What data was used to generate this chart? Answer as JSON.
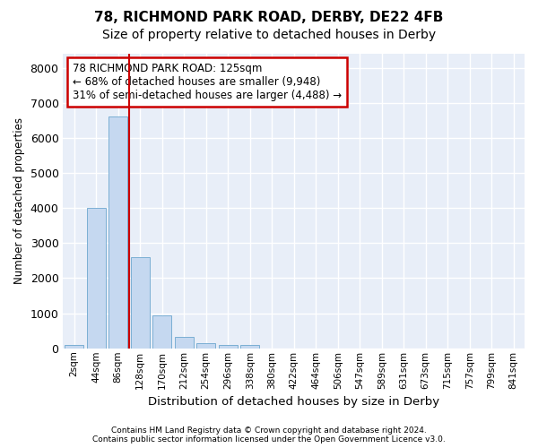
{
  "title1": "78, RICHMOND PARK ROAD, DERBY, DE22 4FB",
  "title2": "Size of property relative to detached houses in Derby",
  "xlabel": "Distribution of detached houses by size in Derby",
  "ylabel": "Number of detached properties",
  "bar_labels": [
    "2sqm",
    "44sqm",
    "86sqm",
    "128sqm",
    "170sqm",
    "212sqm",
    "254sqm",
    "296sqm",
    "338sqm",
    "380sqm",
    "422sqm",
    "464sqm",
    "506sqm",
    "547sqm",
    "589sqm",
    "631sqm",
    "673sqm",
    "715sqm",
    "757sqm",
    "799sqm",
    "841sqm"
  ],
  "bar_values": [
    100,
    4000,
    6600,
    2600,
    950,
    330,
    150,
    100,
    100,
    0,
    0,
    0,
    0,
    0,
    0,
    0,
    0,
    0,
    0,
    0,
    0
  ],
  "bar_color": "#c5d8f0",
  "bar_edge_color": "#7bafd4",
  "vline_x_index": 2,
  "vline_color": "#cc0000",
  "ylim": [
    0,
    8400
  ],
  "yticks": [
    0,
    1000,
    2000,
    3000,
    4000,
    5000,
    6000,
    7000,
    8000
  ],
  "annotation_text": "78 RICHMOND PARK ROAD: 125sqm\n← 68% of detached houses are smaller (9,948)\n31% of semi-detached houses are larger (4,488) →",
  "annotation_box_color": "#ffffff",
  "annotation_box_edge": "#cc0000",
  "footer": "Contains HM Land Registry data © Crown copyright and database right 2024.\nContains public sector information licensed under the Open Government Licence v3.0.",
  "figure_bg": "#ffffff",
  "axes_bg": "#e8eef8",
  "grid_color": "#ffffff",
  "title1_fontsize": 11,
  "title2_fontsize": 10
}
